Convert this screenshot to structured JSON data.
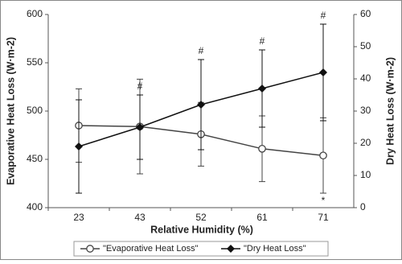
{
  "chart_data": {
    "type": "line",
    "x_label": "Relative Humidity (%)",
    "y_label": "Evaporative Heat Loss (W·m-2)",
    "y2_label": "Dry Heat Loss (W·m-2)",
    "categories": [
      "23",
      "43",
      "52",
      "61",
      "71"
    ],
    "ylim": [
      400,
      600
    ],
    "yticks": [
      400,
      450,
      500,
      550,
      600
    ],
    "y2lim": [
      0,
      60
    ],
    "y2ticks": [
      0,
      10,
      20,
      30,
      40,
      50,
      60
    ],
    "legend": "bottom",
    "series": [
      {
        "name": "\"Evaporative Heat Loss\"",
        "color": "#444",
        "marker": "circle",
        "values": [
          485,
          484,
          476,
          461,
          454
        ],
        "errors": [
          38,
          49,
          33,
          34,
          39
        ],
        "annotations": [
          null,
          null,
          null,
          null,
          "*"
        ]
      },
      {
        "name": "\"Dry Heat Loss\"",
        "color": "#111",
        "marker": "diamond",
        "axis": "y2",
        "values": [
          19,
          25,
          32,
          37,
          42
        ],
        "errors": [
          14.5,
          10,
          14,
          12,
          15
        ],
        "annotations": [
          null,
          "#",
          "#",
          "#",
          "#"
        ]
      }
    ]
  }
}
